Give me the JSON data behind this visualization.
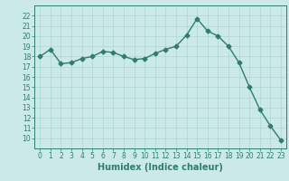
{
  "x": [
    0,
    1,
    2,
    3,
    4,
    5,
    6,
    7,
    8,
    9,
    10,
    11,
    12,
    13,
    14,
    15,
    16,
    17,
    18,
    19,
    20,
    21,
    22,
    23
  ],
  "y": [
    18.0,
    18.7,
    17.3,
    17.4,
    17.8,
    18.0,
    18.5,
    18.4,
    18.0,
    17.7,
    17.8,
    18.3,
    18.7,
    19.0,
    20.1,
    21.7,
    20.5,
    20.0,
    19.0,
    17.4,
    15.0,
    12.8,
    11.2,
    9.8
  ],
  "line_color": "#2e7d6e",
  "marker": "D",
  "markersize": 2.5,
  "linewidth": 1.0,
  "xlabel": "Humidex (Indice chaleur)",
  "ylim": [
    9,
    23
  ],
  "xlim": [
    -0.5,
    23.5
  ],
  "yticks": [
    10,
    11,
    12,
    13,
    14,
    15,
    16,
    17,
    18,
    19,
    20,
    21,
    22
  ],
  "xticks": [
    0,
    1,
    2,
    3,
    4,
    5,
    6,
    7,
    8,
    9,
    10,
    11,
    12,
    13,
    14,
    15,
    16,
    17,
    18,
    19,
    20,
    21,
    22,
    23
  ],
  "bg_color": "#cce9e9",
  "grid_color": "#aed4d4",
  "tick_label_fontsize": 5.5,
  "xlabel_fontsize": 7.0
}
